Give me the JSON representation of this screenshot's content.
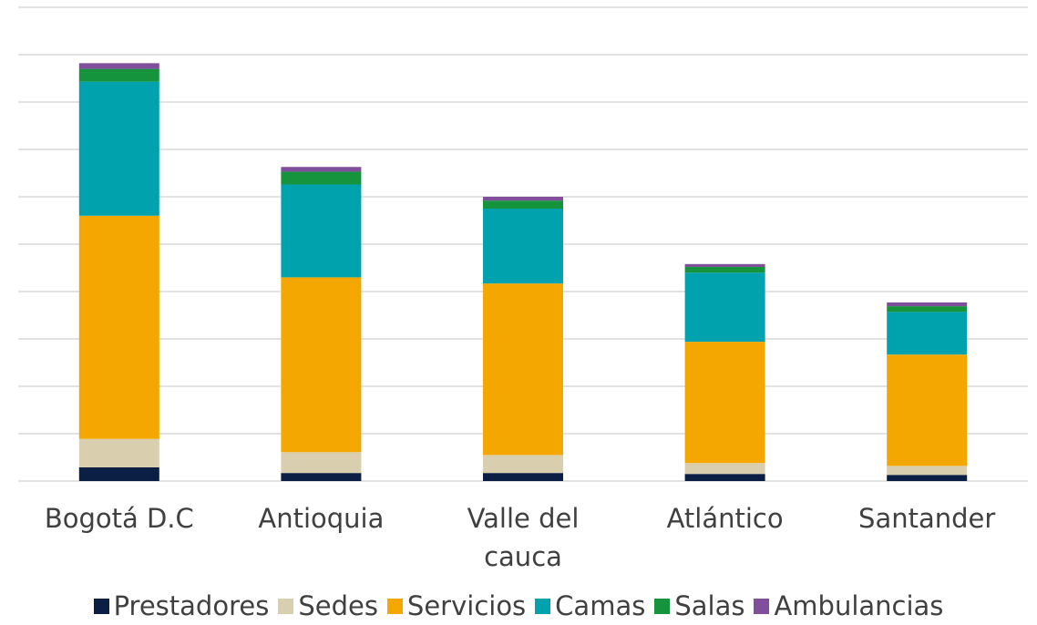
{
  "chart_data": {
    "type": "stacked_bar",
    "categories": [
      "Bogotá D.C",
      "Antioquia",
      "Valle del cauca",
      "Atlántico",
      "Santander"
    ],
    "series": [
      {
        "name": "Prestadores",
        "color": "#0b1f45",
        "values": [
          0.29,
          0.17,
          0.17,
          0.15,
          0.13
        ]
      },
      {
        "name": "Sedes",
        "color": "#d9cfae",
        "values": [
          0.6,
          0.44,
          0.38,
          0.23,
          0.19
        ]
      },
      {
        "name": "Servicios",
        "color": "#f4a700",
        "values": [
          4.71,
          3.69,
          3.62,
          2.56,
          2.35
        ]
      },
      {
        "name": "Camas",
        "color": "#00a3ad",
        "values": [
          2.83,
          1.96,
          1.58,
          1.46,
          0.9
        ]
      },
      {
        "name": "Salas",
        "color": "#15943d",
        "values": [
          0.27,
          0.27,
          0.17,
          0.12,
          0.12
        ]
      },
      {
        "name": "Ambulancias",
        "color": "#7f4f9b",
        "values": [
          0.12,
          0.1,
          0.08,
          0.06,
          0.08
        ]
      }
    ],
    "ylim": [
      0,
      10
    ],
    "yticks": [
      0,
      1,
      2,
      3,
      4,
      5,
      6,
      7,
      8,
      9,
      10
    ],
    "grid": true,
    "legend": "bottom"
  }
}
